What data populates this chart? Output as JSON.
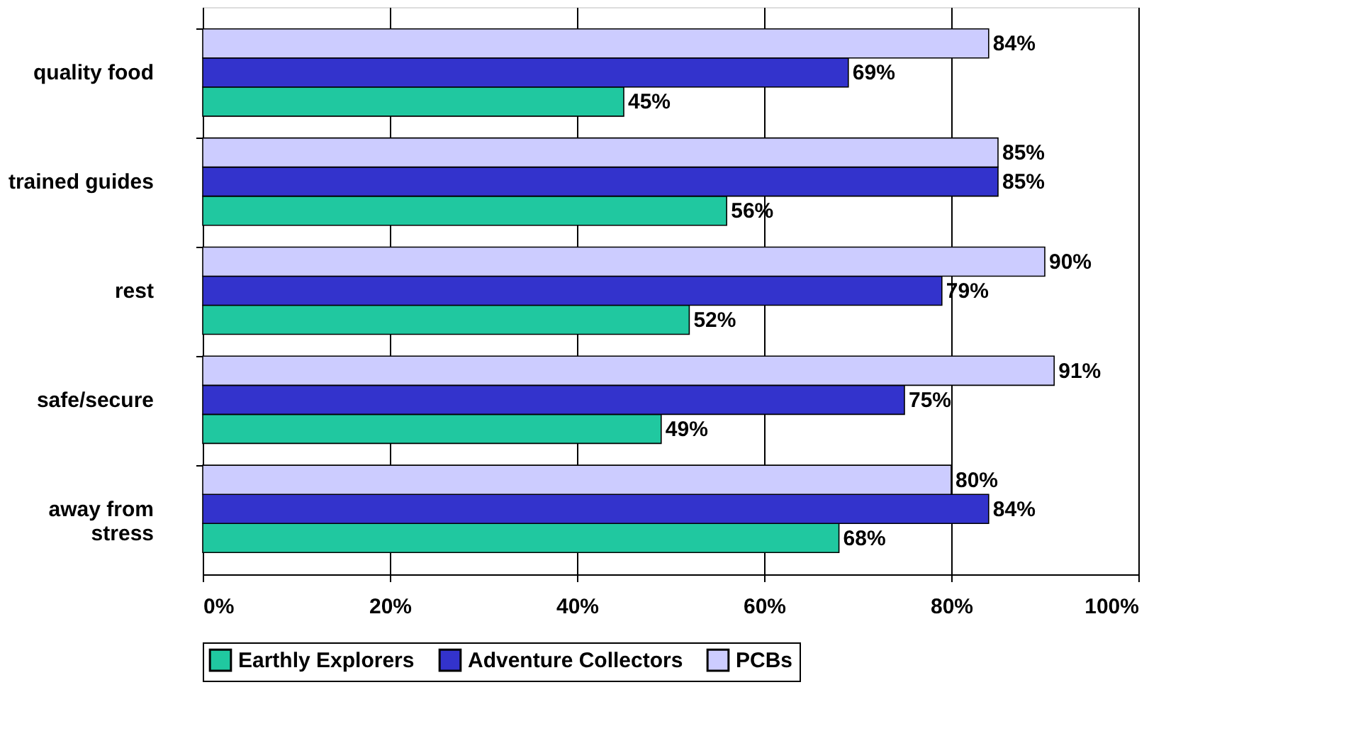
{
  "chart_data": {
    "type": "bar",
    "orientation": "horizontal",
    "categories": [
      "quality food",
      "trained guides",
      "rest",
      "safe/secure",
      "away from\nstress"
    ],
    "series": [
      {
        "name": "Earthly Explorers",
        "color": "#20c8a0",
        "values": [
          45,
          56,
          52,
          49,
          68
        ],
        "value_labels": [
          "45%",
          "56%",
          "52%",
          "49%",
          "68%"
        ]
      },
      {
        "name": "Adventure Collectors",
        "color": "#3333cc",
        "values": [
          69,
          85,
          79,
          75,
          84
        ],
        "value_labels": [
          "69%",
          "85%",
          "79%",
          "75%",
          "84%"
        ]
      },
      {
        "name": "PCBs",
        "color": "#ccccff",
        "values": [
          84,
          85,
          90,
          91,
          80
        ],
        "value_labels": [
          "84%",
          "85%",
          "90%",
          "91%",
          "80%"
        ]
      }
    ],
    "xlim": [
      0,
      100
    ],
    "xticks": [
      {
        "value": 0,
        "label": "0%"
      },
      {
        "value": 20,
        "label": "20%"
      },
      {
        "value": 40,
        "label": "40%"
      },
      {
        "value": 60,
        "label": "60%"
      },
      {
        "value": 80,
        "label": "80%"
      },
      {
        "value": 100,
        "label": "100%"
      }
    ],
    "grid": "x",
    "legend": "bottom"
  }
}
